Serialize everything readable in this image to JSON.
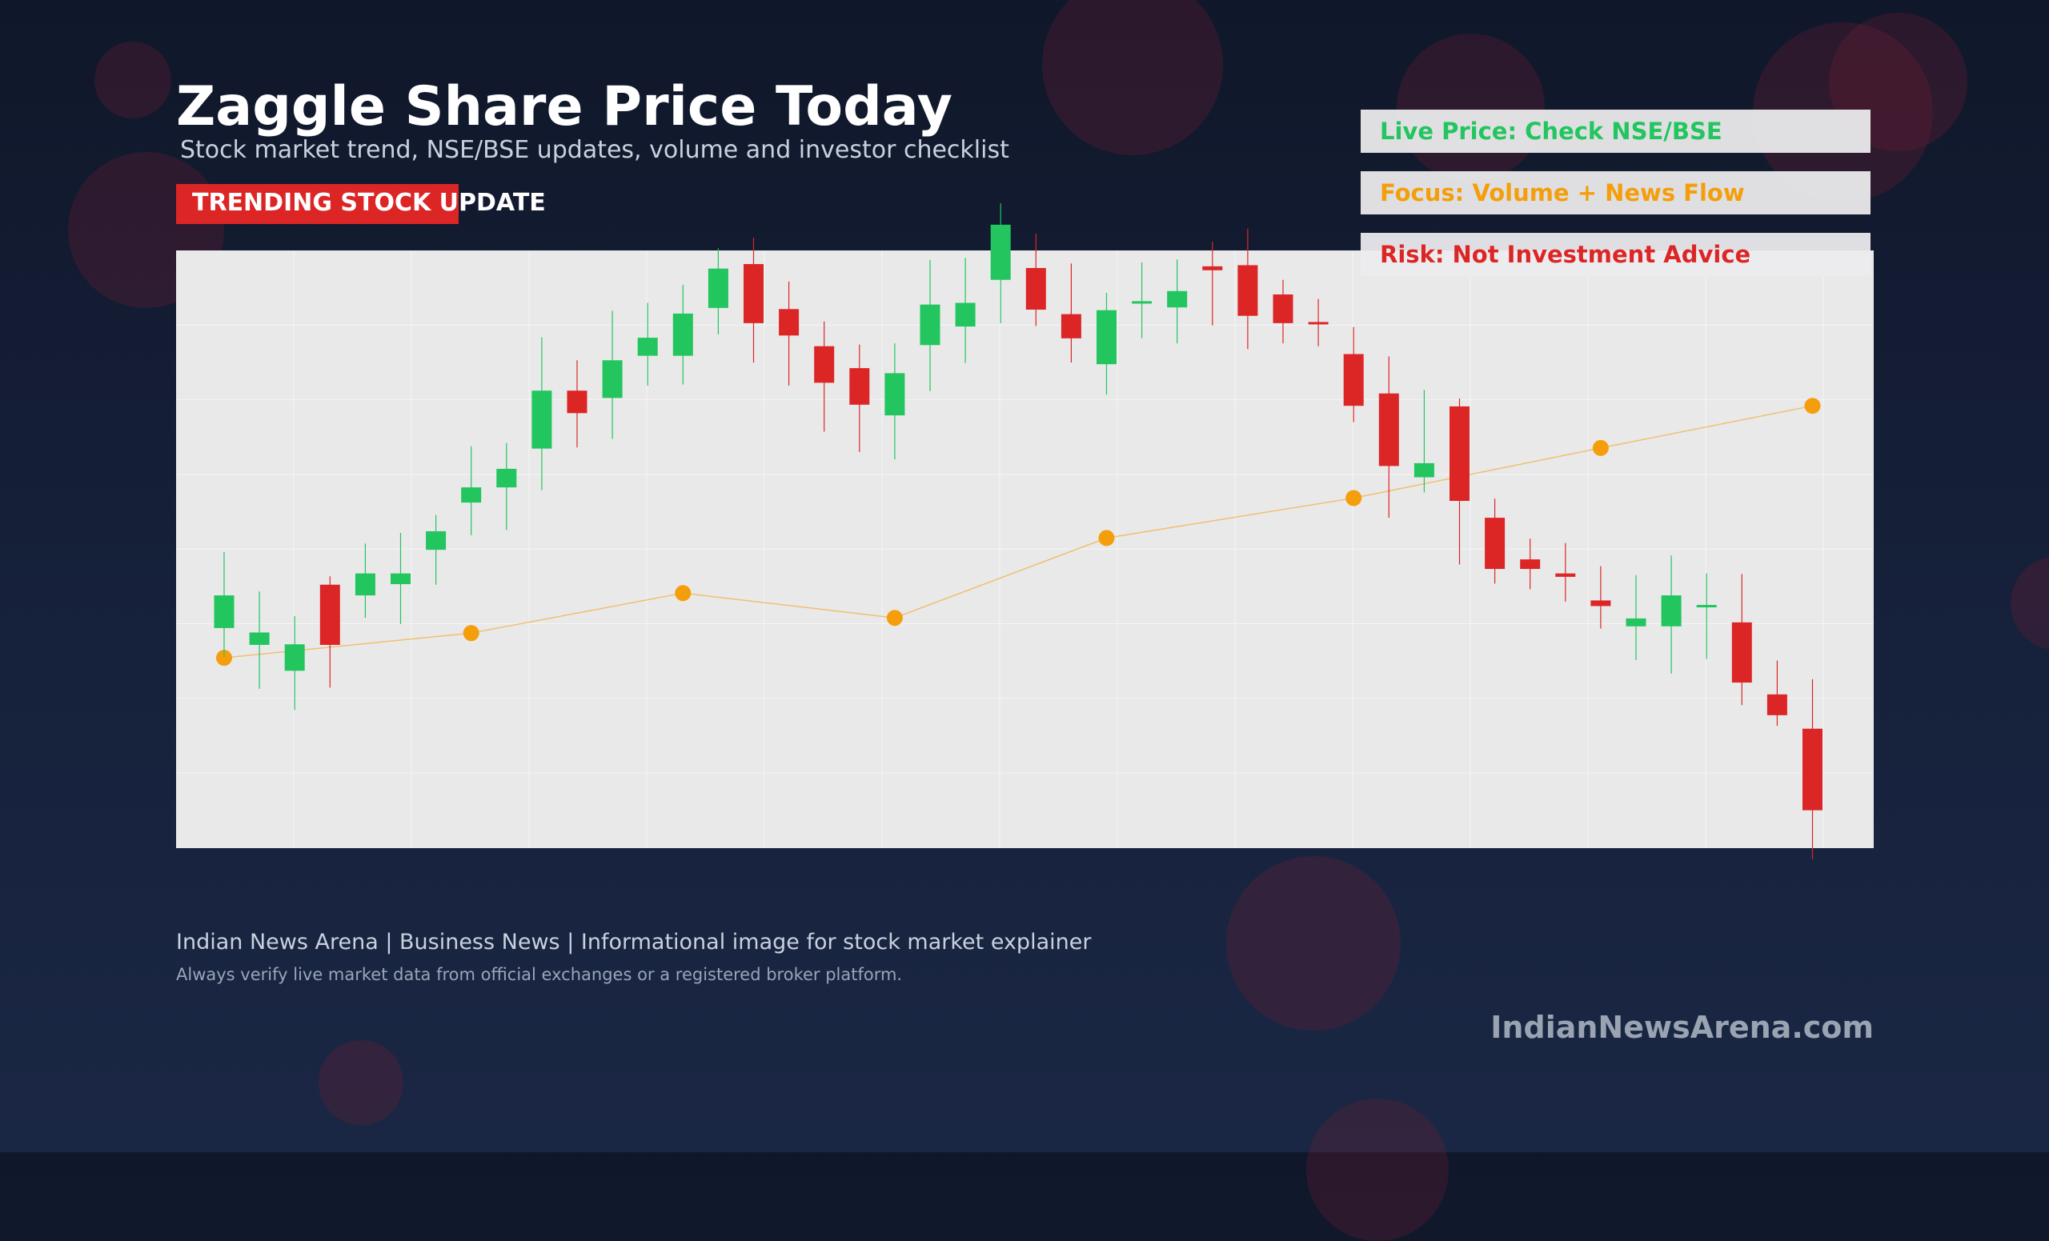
{
  "header": {
    "title": "Zaggle Share Price Today",
    "subtitle": "Stock market trend, NSE/BSE updates, volume and investor checklist",
    "badge": "TRENDING STOCK UPDATE"
  },
  "info_boxes": [
    {
      "label": "Live Price: Check NSE/BSE",
      "color": "#22c55e"
    },
    {
      "label": "Focus: Volume + News Flow",
      "color": "#f59e0b"
    },
    {
      "label": "Risk: Not Investment Advice",
      "color": "#dc2626"
    }
  ],
  "footer": {
    "line1": "Indian News Arena | Business News | Informational image for stock market explainer",
    "line2": "Always verify live market data from official exchanges or a registered broker platform.",
    "brand": "IndianNewsArena.com"
  },
  "colors": {
    "up": "#22c55e",
    "down": "#dc2626",
    "trend": "#f59e0b",
    "accent": "#dc2626"
  },
  "chart_data": {
    "type": "candlestick",
    "title": "",
    "xlabel": "",
    "ylabel": "",
    "ylim": [
      0,
      100
    ],
    "grid": true,
    "legend": "none",
    "candles": [
      {
        "o": 30.6,
        "h": 44.1,
        "l": 25.5,
        "c": 36.4
      },
      {
        "o": 27.6,
        "h": 37.1,
        "l": 19.8,
        "c": 29.8
      },
      {
        "o": 23.0,
        "h": 32.7,
        "l": 16.0,
        "c": 27.7
      },
      {
        "o": 38.3,
        "h": 39.8,
        "l": 20.0,
        "c": 27.6
      },
      {
        "o": 36.4,
        "h": 45.6,
        "l": 32.4,
        "c": 40.3
      },
      {
        "o": 38.4,
        "h": 47.5,
        "l": 31.3,
        "c": 40.3
      },
      {
        "o": 44.5,
        "h": 50.7,
        "l": 38.3,
        "c": 47.8
      },
      {
        "o": 52.9,
        "h": 62.9,
        "l": 47.1,
        "c": 55.6
      },
      {
        "o": 55.6,
        "h": 63.5,
        "l": 48.0,
        "c": 58.9
      },
      {
        "o": 62.5,
        "h": 82.3,
        "l": 55.1,
        "c": 72.8
      },
      {
        "o": 72.8,
        "h": 78.2,
        "l": 62.7,
        "c": 68.8
      },
      {
        "o": 71.5,
        "h": 87.0,
        "l": 64.2,
        "c": 78.2
      },
      {
        "o": 79.0,
        "h": 88.4,
        "l": 73.7,
        "c": 82.2
      },
      {
        "o": 79.0,
        "h": 91.6,
        "l": 73.9,
        "c": 86.5
      },
      {
        "o": 87.5,
        "h": 98.1,
        "l": 82.8,
        "c": 94.5
      },
      {
        "o": 95.3,
        "h": 100.0,
        "l": 77.8,
        "c": 84.8
      },
      {
        "o": 87.3,
        "h": 92.2,
        "l": 73.7,
        "c": 82.6
      },
      {
        "o": 80.7,
        "h": 85.1,
        "l": 65.5,
        "c": 74.2
      },
      {
        "o": 76.8,
        "h": 81.0,
        "l": 61.9,
        "c": 70.3
      },
      {
        "o": 68.4,
        "h": 81.2,
        "l": 60.6,
        "c": 75.9
      },
      {
        "o": 80.9,
        "h": 96.0,
        "l": 72.7,
        "c": 88.1
      },
      {
        "o": 84.2,
        "h": 96.4,
        "l": 77.7,
        "c": 88.4
      },
      {
        "o": 92.5,
        "h": 106.1,
        "l": 84.8,
        "c": 102.3
      },
      {
        "o": 94.6,
        "h": 100.7,
        "l": 84.3,
        "c": 87.2
      },
      {
        "o": 86.4,
        "h": 95.4,
        "l": 77.8,
        "c": 82.1
      },
      {
        "o": 77.5,
        "h": 90.2,
        "l": 72.1,
        "c": 87.1
      },
      {
        "o": 88.7,
        "h": 95.6,
        "l": 82.1,
        "c": 88.7
      },
      {
        "o": 87.6,
        "h": 96.1,
        "l": 81.2,
        "c": 90.5
      },
      {
        "o": 94.9,
        "h": 99.3,
        "l": 84.4,
        "c": 94.2
      },
      {
        "o": 95.1,
        "h": 101.6,
        "l": 80.2,
        "c": 86.1
      },
      {
        "o": 89.9,
        "h": 92.5,
        "l": 81.2,
        "c": 84.8
      },
      {
        "o": 85.0,
        "h": 89.1,
        "l": 80.7,
        "c": 84.6
      },
      {
        "o": 79.3,
        "h": 84.1,
        "l": 67.2,
        "c": 70.1
      },
      {
        "o": 72.3,
        "h": 78.9,
        "l": 50.2,
        "c": 59.4
      },
      {
        "o": 57.4,
        "h": 72.9,
        "l": 54.7,
        "c": 59.9
      },
      {
        "o": 70.0,
        "h": 71.4,
        "l": 41.9,
        "c": 53.2
      },
      {
        "o": 50.2,
        "h": 53.6,
        "l": 38.5,
        "c": 41.1
      },
      {
        "o": 42.8,
        "h": 46.5,
        "l": 37.5,
        "c": 41.1
      },
      {
        "o": 40.3,
        "h": 45.7,
        "l": 35.3,
        "c": 39.7
      },
      {
        "o": 35.5,
        "h": 41.6,
        "l": 30.5,
        "c": 34.5
      },
      {
        "o": 30.9,
        "h": 40.0,
        "l": 24.9,
        "c": 32.3
      },
      {
        "o": 30.9,
        "h": 43.5,
        "l": 22.5,
        "c": 36.4
      },
      {
        "o": 34.4,
        "h": 40.3,
        "l": 25.1,
        "c": 34.7
      },
      {
        "o": 31.6,
        "h": 40.2,
        "l": 16.9,
        "c": 20.9
      },
      {
        "o": 18.8,
        "h": 24.8,
        "l": 13.2,
        "c": 15.1
      },
      {
        "o": 12.7,
        "h": 21.5,
        "l": -10.5,
        "c": -1.8
      }
    ],
    "trend_line": [
      {
        "i": 0,
        "y": 25.3
      },
      {
        "i": 7,
        "y": 29.7
      },
      {
        "i": 13,
        "y": 36.8
      },
      {
        "i": 19,
        "y": 32.4
      },
      {
        "i": 25,
        "y": 46.6
      },
      {
        "i": 32,
        "y": 53.7
      },
      {
        "i": 39,
        "y": 62.6
      },
      {
        "i": 45,
        "y": 70.1
      }
    ]
  }
}
